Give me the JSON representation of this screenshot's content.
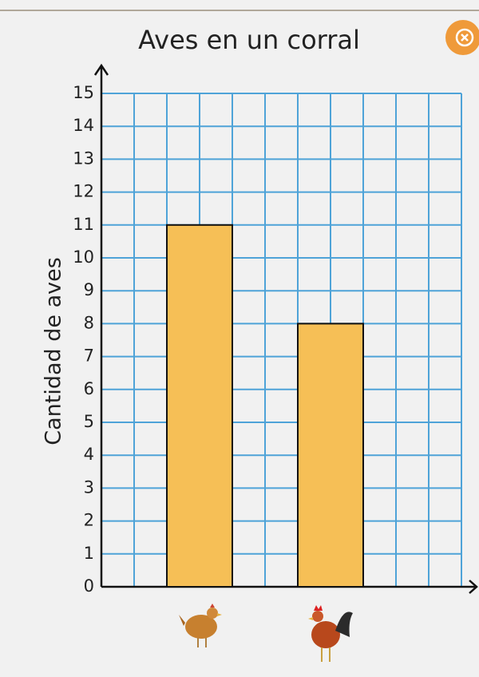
{
  "chart_data": {
    "type": "bar",
    "title": "Aves en un corral",
    "y_label": "Cantidad de aves",
    "categories": [
      null,
      null
    ],
    "values": [
      11,
      8
    ],
    "color": "#f6bf56",
    "ylim": [
      0,
      15
    ],
    "yticks": [
      0,
      1,
      2,
      3,
      4,
      5,
      6,
      7,
      8,
      9,
      10,
      11,
      12,
      13,
      14,
      15
    ],
    "grid": true
  }
}
